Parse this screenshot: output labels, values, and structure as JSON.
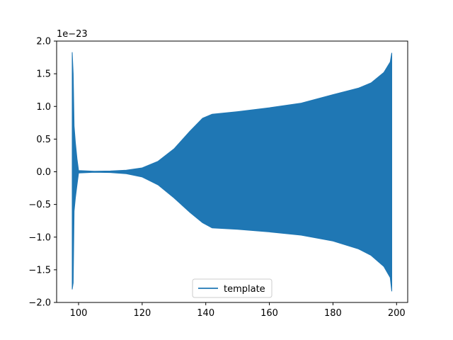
{
  "chart_data": {
    "type": "line",
    "title": "",
    "xlabel": "",
    "ylabel": "",
    "y_offset_label": "1e−23",
    "xlim": [
      93.1,
      203.5
    ],
    "ylim": [
      -2.0,
      2.0
    ],
    "x_ticks": [
      100,
      120,
      140,
      160,
      180,
      200
    ],
    "x_tick_labels": [
      "100",
      "120",
      "140",
      "160",
      "180",
      "200"
    ],
    "y_ticks": [
      2.0,
      1.5,
      1.0,
      0.5,
      0.0,
      -0.5,
      -1.0,
      -1.5,
      -2.0
    ],
    "y_tick_labels": [
      "2.0",
      "1.5",
      "1.0",
      "0.5",
      "0.0",
      "−0.5",
      "−1.0",
      "−1.5",
      "−2.0"
    ],
    "grid": false,
    "legend_placement": "lower-center",
    "series": [
      {
        "name": "template",
        "color": "#1f77b4",
        "style": "dense oscillation, symmetric envelope (x, upper, lower)",
        "envelope": [
          [
            98.0,
            1.83,
            -1.8
          ],
          [
            98.3,
            1.5,
            -1.7
          ],
          [
            98.6,
            0.7,
            -0.6
          ],
          [
            99.0,
            0.45,
            -0.4
          ],
          [
            99.5,
            0.2,
            -0.2
          ],
          [
            100.0,
            0.02,
            -0.02
          ],
          [
            105.0,
            0.008,
            -0.008
          ],
          [
            110.0,
            0.012,
            -0.012
          ],
          [
            115.0,
            0.025,
            -0.03
          ],
          [
            120.0,
            0.06,
            -0.08
          ],
          [
            125.0,
            0.16,
            -0.2
          ],
          [
            130.0,
            0.35,
            -0.4
          ],
          [
            135.0,
            0.62,
            -0.62
          ],
          [
            139.0,
            0.82,
            -0.78
          ],
          [
            142.0,
            0.88,
            -0.86
          ],
          [
            150.0,
            0.92,
            -0.88
          ],
          [
            160.0,
            0.98,
            -0.92
          ],
          [
            170.0,
            1.05,
            -0.97
          ],
          [
            180.0,
            1.18,
            -1.06
          ],
          [
            188.0,
            1.28,
            -1.18
          ],
          [
            192.0,
            1.36,
            -1.28
          ],
          [
            196.0,
            1.52,
            -1.45
          ],
          [
            198.0,
            1.68,
            -1.62
          ],
          [
            198.5,
            1.82,
            -1.83
          ]
        ]
      }
    ]
  }
}
